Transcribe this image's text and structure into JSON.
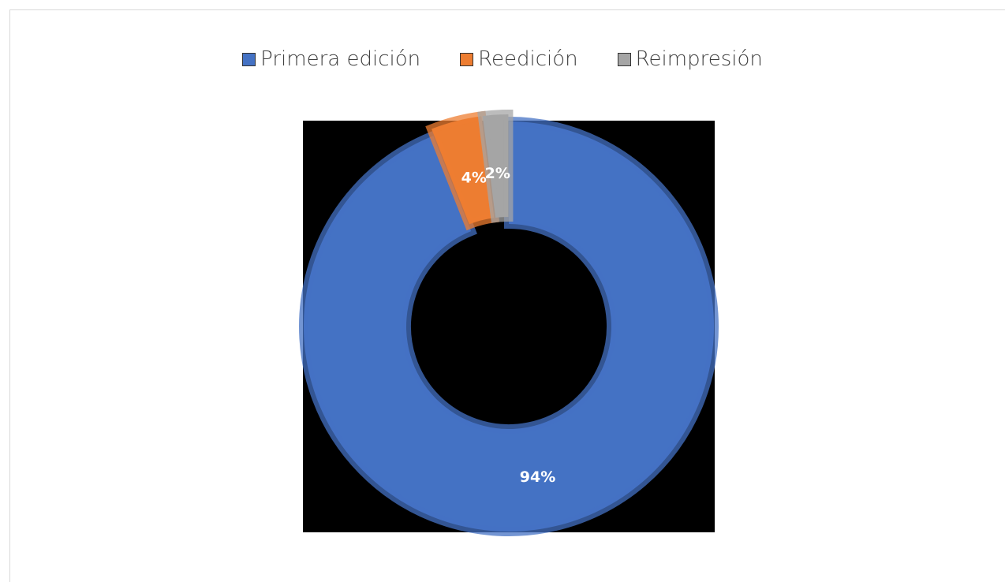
{
  "chart_data": {
    "type": "donut",
    "categories": [
      "Primera edición",
      "Reedición",
      "Reimpresión"
    ],
    "values": [
      94,
      4,
      2
    ],
    "value_labels": [
      "94%",
      "4%",
      "2%"
    ],
    "colors": [
      "#4472c4",
      "#ed7d31",
      "#a5a5a5"
    ],
    "legend": "top"
  }
}
